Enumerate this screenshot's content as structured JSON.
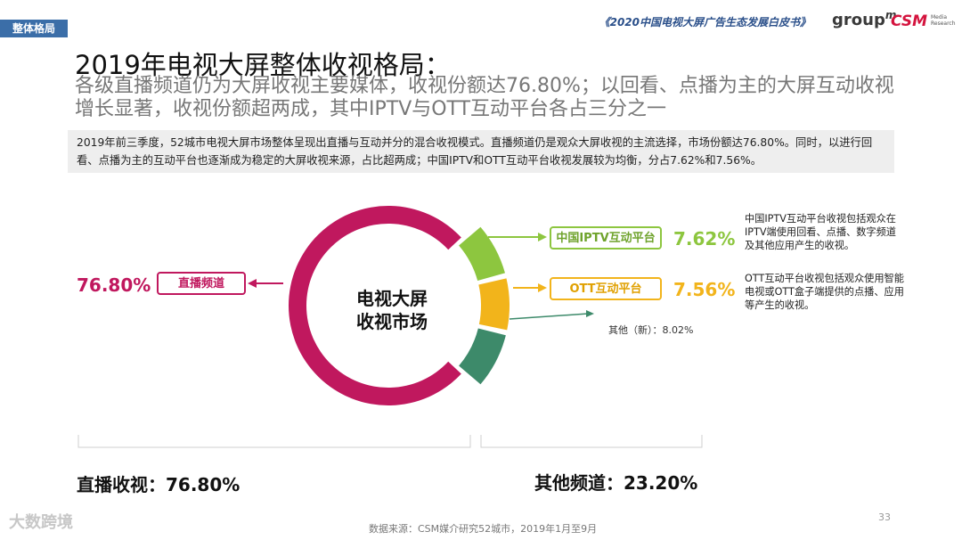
{
  "header": {
    "tag": "整体格局",
    "report_title": "《2020中国电视大屏广告生态发展白皮书》",
    "logo_groupm": "group",
    "logo_groupm_sup": "m",
    "logo_csm": "CSM",
    "logo_csm_sub": "Media Research"
  },
  "title": "2019年电视大屏整体收视格局：",
  "subtitle": "各级直播频道仍为大屏收视主要媒体，收视份额达76.80%；以回看、点播为主的大屏互动收视增长显著，收视份额超两成，其中IPTV与OTT互动平台各占三分之一",
  "summary": "2019年前三季度，52城市电视大屏市场整体呈现出直播与互动并分的混合收视模式。直播频道仍是观众大屏收视的主流选择，市场份额达76.80%。同时，以进行回看、点播为主的互动平台也逐渐成为稳定的大屏收视来源，占比超两成；中国IPTV和OTT互动平台收视发展较为均衡，分占7.62%和7.56%。",
  "colors": {
    "live": "#c0185e",
    "iptv": "#8dc63f",
    "ott": "#f2b41b",
    "other": "#3d8a6a"
  },
  "chart_data": {
    "type": "pie",
    "title": "电视大屏收视市场",
    "series": [
      {
        "name": "直播频道",
        "value": 76.8
      },
      {
        "name": "中国IPTV互动平台",
        "value": 7.62
      },
      {
        "name": "OTT互动平台",
        "value": 7.56
      },
      {
        "name": "其他（新）",
        "value": 8.02
      }
    ]
  },
  "labels": {
    "center_line1": "电视大屏",
    "center_line2": "收视市场",
    "live_pct": "76.80%",
    "live_name": "直播频道",
    "iptv_name": "中国IPTV互动平台",
    "iptv_pct": "7.62%",
    "ott_name": "OTT互动平台",
    "ott_pct": "7.56%",
    "other": "其他（新）：8.02%"
  },
  "notes": {
    "iptv": "中国IPTV互动平台收视包括观众在IPTV端使用回看、点播、数字频道及其他应用产生的收视。",
    "ott": "OTT互动平台收视包括观众使用智能电视或OTT盒子端提供的点播、应用等产生的收视。"
  },
  "footer": {
    "live_total": "直播收视：76.80%",
    "other_total": "其他频道：23.20%",
    "source": "数据来源：CSM媒介研究52城市，2019年1月至9月",
    "page": "33",
    "watermark": "大数跨境"
  }
}
